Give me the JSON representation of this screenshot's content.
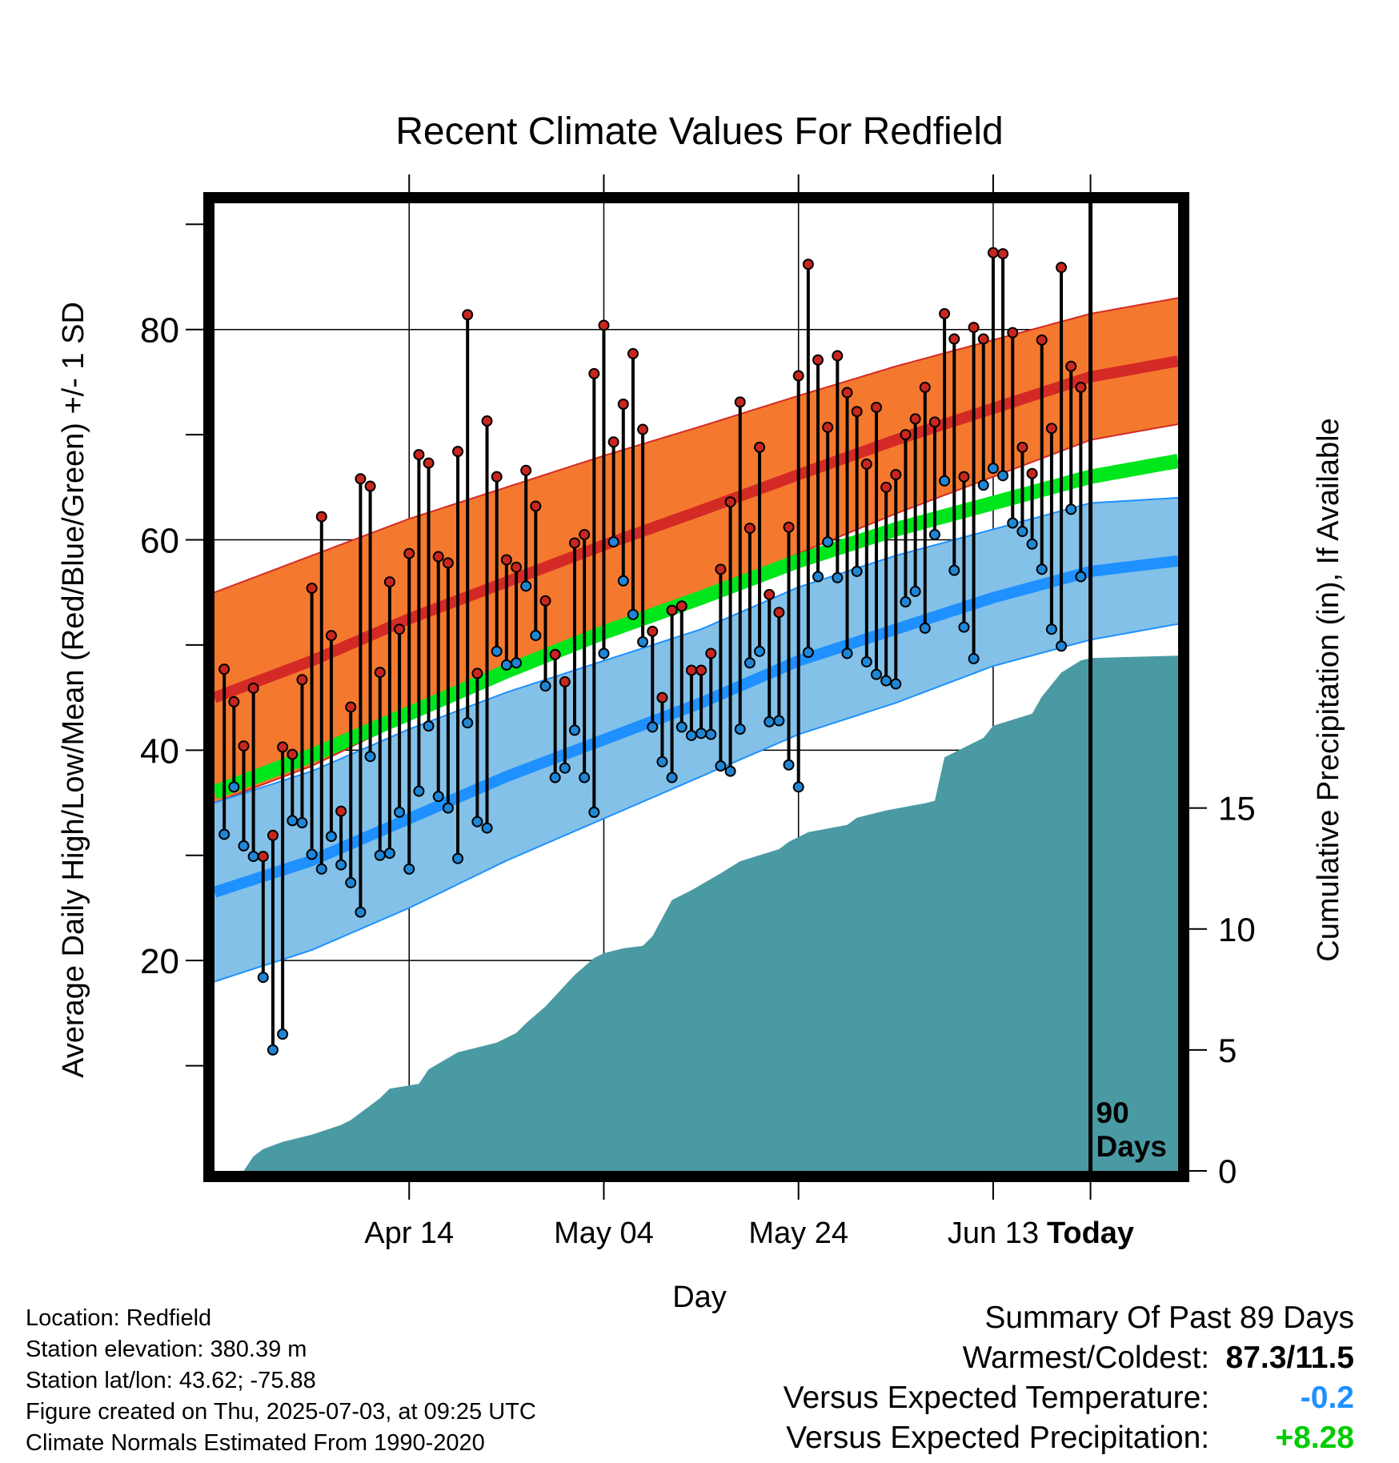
{
  "chart_data": {
    "type": "line",
    "title": "Recent Climate Values For Redfield",
    "xlabel": "Day",
    "ylabel": "Average Daily High/Low/Mean (Red/Blue/Green) +/- 1 SD",
    "y2label": "Cumulative Precipitation (in), If Available",
    "ylim": [
      0,
      92
    ],
    "y2lim": [
      0,
      40
    ],
    "x_range_days": [
      -90,
      9
    ],
    "x_ticks": [
      {
        "day": -70,
        "label": "Apr 14"
      },
      {
        "day": -50,
        "label": "May 04"
      },
      {
        "day": -30,
        "label": "May 24"
      },
      {
        "day": -10,
        "label": "Jun 13"
      },
      {
        "day": 0,
        "label": "Today"
      }
    ],
    "y_ticks": [
      20,
      40,
      60,
      80
    ],
    "y2_ticks": [
      0,
      5,
      10,
      15
    ],
    "today_annotation": "90\nDays",
    "grid": true,
    "colors": {
      "high": "#d42a25",
      "high_band": "#f4792f",
      "low": "#1e90ff",
      "low_band": "#83c1e8",
      "mean": "#00e61c",
      "precip": "#4a9aa3",
      "observed_high_dot": "#c8261f",
      "observed_low_dot": "#1f86d6"
    },
    "normals": {
      "day": [
        -90,
        -80,
        -70,
        -60,
        -50,
        -40,
        -30,
        -20,
        -10,
        0,
        9
      ],
      "high_mean": [
        45,
        48.5,
        52.5,
        56,
        59.5,
        62.8,
        66.2,
        69.5,
        72.5,
        75.5,
        77
      ],
      "high_sd": [
        10,
        10,
        9.5,
        9,
        8.5,
        8,
        7.5,
        7,
        6.5,
        6,
        6
      ],
      "low_mean": [
        26.5,
        29.5,
        33.5,
        37.5,
        41,
        44.5,
        48.5,
        51.5,
        54.5,
        57,
        58
      ],
      "low_sd": [
        8.5,
        8.5,
        8.5,
        8,
        7.5,
        7,
        7,
        7,
        6.5,
        6.5,
        6
      ],
      "mean_temp": [
        36,
        39.5,
        43.5,
        47.5,
        51.2,
        54.5,
        58,
        61,
        63.5,
        66,
        67.5
      ]
    },
    "observed": {
      "day_start": -89,
      "high": [
        47.7,
        44.6,
        40.4,
        45.9,
        29.9,
        31.9,
        40.3,
        39.6,
        46.7,
        55.4,
        62.2,
        50.9,
        34.2,
        44.1,
        65.8,
        65.1,
        47.4,
        56.0,
        51.5,
        58.7,
        68.1,
        67.3,
        58.4,
        57.8,
        68.4,
        81.4,
        47.3,
        71.3,
        66.0,
        58.1,
        57.4,
        66.6,
        63.2,
        54.2,
        49.1,
        46.5,
        59.7,
        60.5,
        75.8,
        80.4,
        69.3,
        72.9,
        77.7,
        70.5,
        51.3,
        45.0,
        53.3,
        53.7,
        47.6,
        47.6,
        49.2,
        57.2,
        63.6,
        73.1,
        61.1,
        68.8,
        54.8,
        53.1,
        61.2,
        75.6,
        86.2,
        77.1,
        70.7,
        77.5,
        74.0,
        72.2,
        67.2,
        72.6,
        65.0,
        66.2,
        70.0,
        71.5,
        74.5,
        71.2,
        81.5,
        79.1,
        66.0,
        80.2,
        79.1,
        87.3,
        87.2,
        79.7,
        68.8,
        66.3,
        79.0,
        70.6,
        85.9,
        76.5,
        74.5
      ],
      "low": [
        32.0,
        36.5,
        30.9,
        29.9,
        18.4,
        11.5,
        13.0,
        33.3,
        33.1,
        30.1,
        28.7,
        31.8,
        29.1,
        27.4,
        24.6,
        39.4,
        30.0,
        30.2,
        34.1,
        28.7,
        36.1,
        42.3,
        35.6,
        34.5,
        29.7,
        42.6,
        33.2,
        32.6,
        49.4,
        48.1,
        48.3,
        55.6,
        50.9,
        46.1,
        37.4,
        38.3,
        41.9,
        37.4,
        34.1,
        49.2,
        59.8,
        56.1,
        52.9,
        50.3,
        42.2,
        38.9,
        37.4,
        42.2,
        41.4,
        41.6,
        41.5,
        38.5,
        38.0,
        42.0,
        48.3,
        49.4,
        42.7,
        42.8,
        38.6,
        36.5,
        49.3,
        56.5,
        59.8,
        56.4,
        49.2,
        57.0,
        48.4,
        47.2,
        46.6,
        46.3,
        54.1,
        55.1,
        51.6,
        60.5,
        65.6,
        57.1,
        51.7,
        48.7,
        65.2,
        66.8,
        66.1,
        61.6,
        60.8,
        59.6,
        57.2,
        51.5,
        49.9,
        62.9,
        56.5
      ]
    },
    "cumulative_precip": {
      "day": [
        -89,
        -87,
        -86,
        -85,
        -83,
        -81,
        -80,
        -77,
        -76,
        -73,
        -72,
        -69,
        -68,
        -65,
        -62,
        -61,
        -59,
        -58,
        -56,
        -53,
        -51,
        -50,
        -48,
        -46,
        -45,
        -43,
        -41,
        -38,
        -36,
        -32,
        -31,
        -29,
        -25,
        -24,
        -21,
        -17,
        -16,
        -15,
        -11,
        -10,
        -6,
        -5,
        -4,
        -3,
        -1,
        0,
        9
      ],
      "value": [
        0,
        0,
        0.6,
        0.9,
        1.2,
        1.4,
        1.5,
        1.9,
        2.1,
        3.0,
        3.4,
        3.6,
        4.2,
        4.9,
        5.2,
        5.3,
        5.7,
        6.1,
        6.8,
        8.1,
        8.8,
        9.0,
        9.2,
        9.3,
        9.7,
        11.2,
        11.6,
        12.3,
        12.8,
        13.3,
        13.6,
        14.0,
        14.3,
        14.6,
        14.9,
        15.2,
        15.3,
        17.1,
        17.9,
        18.4,
        18.9,
        19.6,
        20.1,
        20.6,
        21.1,
        21.2,
        21.3
      ]
    }
  },
  "info": {
    "location": "Location: Redfield",
    "elevation": "Station elevation: 380.39 m",
    "latlon": "Station lat/lon: 43.62; -75.88",
    "created": "Figure created on Thu, 2025-07-03, at 09:25 UTC",
    "normals": "Climate Normals Estimated From 1990-2020"
  },
  "summary": {
    "title": "Summary Of Past 89 Days",
    "warmest_coldest_label": "Warmest/Coldest:",
    "warmest_coldest_value": "87.3/11.5",
    "temp_label": "Versus Expected Temperature:",
    "temp_value": "-0.2",
    "temp_color": "#1e90ff",
    "precip_label": "Versus Expected Precipitation:",
    "precip_value": "+8.28",
    "precip_color": "#00cc00"
  }
}
